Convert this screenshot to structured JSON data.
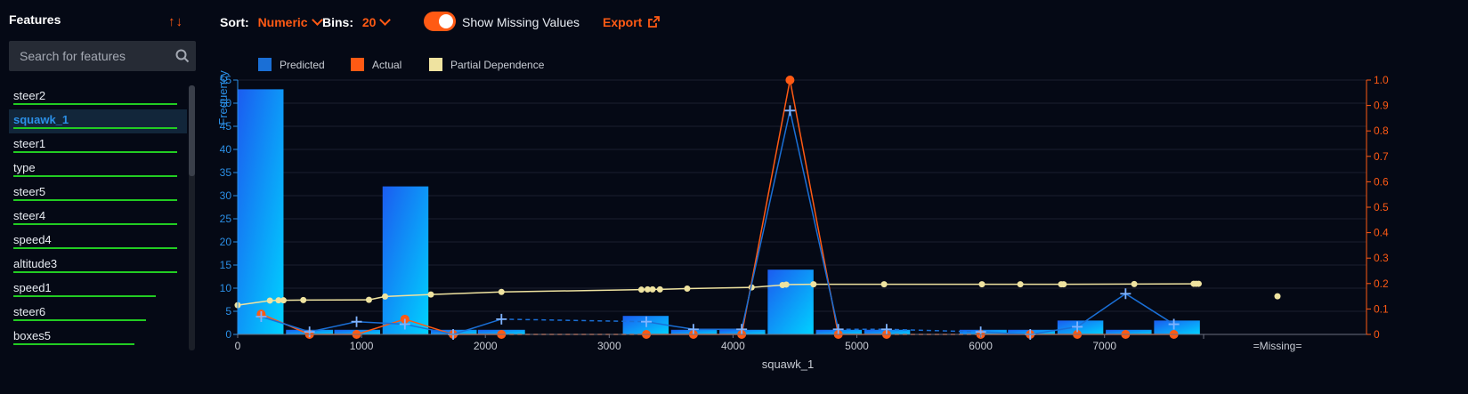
{
  "sidebar": {
    "title": "Features",
    "search": {
      "placeholder": "Search for features",
      "value": ""
    },
    "items": [
      {
        "label": "steer2",
        "importance": 1.0,
        "selected": false
      },
      {
        "label": "squawk_1",
        "importance": 1.0,
        "selected": true
      },
      {
        "label": "steer1",
        "importance": 1.0,
        "selected": false
      },
      {
        "label": "type",
        "importance": 1.0,
        "selected": false
      },
      {
        "label": "steer5",
        "importance": 1.0,
        "selected": false
      },
      {
        "label": "steer4",
        "importance": 1.0,
        "selected": false
      },
      {
        "label": "speed4",
        "importance": 1.0,
        "selected": false
      },
      {
        "label": "altitude3",
        "importance": 1.0,
        "selected": false
      },
      {
        "label": "speed1",
        "importance": 0.87,
        "selected": false
      },
      {
        "label": "steer6",
        "importance": 0.81,
        "selected": false
      },
      {
        "label": "boxes5",
        "importance": 0.74,
        "selected": false
      }
    ]
  },
  "toolbar": {
    "sort_label": "Sort:",
    "sort_value": "Numeric",
    "bins_label": "Bins:",
    "bins_value": "20",
    "missing_label": "Show Missing Values",
    "missing_on": true,
    "export_label": "Export"
  },
  "colors": {
    "predicted": "#1a6fd6",
    "actual": "#ff5a14",
    "partial": "#efe3a0",
    "bar_top": "#1b5cf0",
    "bar_bottom": "#00d2ff"
  },
  "chart_data": {
    "type": "bar",
    "legend": [
      "Predicted",
      "Actual",
      "Partial Dependence"
    ],
    "xlabel": "squawk_1",
    "ylabel": "Frequency",
    "xlim": [
      0,
      7800
    ],
    "x_ticks": [
      0,
      1000,
      2000,
      3000,
      4000,
      5000,
      6000,
      7000
    ],
    "ylim": [
      0,
      55
    ],
    "y_ticks": [
      0,
      5,
      10,
      15,
      20,
      25,
      30,
      35,
      40,
      45,
      50,
      55
    ],
    "y2lim": [
      0,
      1.0
    ],
    "y2_ticks": [
      "0",
      "0.1",
      "0.2",
      "0.3",
      "0.4",
      "0.5",
      "0.6",
      "0.7",
      "0.8",
      "0.9",
      "1.0"
    ],
    "missing_label": "=Missing=",
    "bars": [
      {
        "x0": 0,
        "x1": 370,
        "value": 53
      },
      {
        "x0": 390,
        "x1": 770,
        "value": 1
      },
      {
        "x0": 780,
        "x1": 1150,
        "value": 1
      },
      {
        "x0": 1170,
        "x1": 1540,
        "value": 32
      },
      {
        "x0": 1560,
        "x1": 1930,
        "value": 1
      },
      {
        "x0": 1940,
        "x1": 2320,
        "value": 1
      },
      {
        "x0": 3110,
        "x1": 3480,
        "value": 4
      },
      {
        "x0": 3500,
        "x1": 3870,
        "value": 1
      },
      {
        "x0": 3890,
        "x1": 4260,
        "value": 1
      },
      {
        "x0": 4280,
        "x1": 4650,
        "value": 14
      },
      {
        "x0": 4670,
        "x1": 5040,
        "value": 1
      },
      {
        "x0": 5060,
        "x1": 5430,
        "value": 1
      },
      {
        "x0": 5830,
        "x1": 6210,
        "value": 1
      },
      {
        "x0": 6220,
        "x1": 6600,
        "value": 1
      },
      {
        "x0": 6620,
        "x1": 6990,
        "value": 3
      },
      {
        "x0": 7010,
        "x1": 7380,
        "value": 1
      },
      {
        "x0": 7400,
        "x1": 7770,
        "value": 3
      }
    ],
    "predicted": [
      {
        "x": 190,
        "y": 0.07
      },
      {
        "x": 580,
        "y": 0.01
      },
      {
        "x": 960,
        "y": 0.05
      },
      {
        "x": 1350,
        "y": 0.04
      },
      {
        "x": 1740,
        "y": 0.0
      },
      {
        "x": 2130,
        "y": 0.06,
        "dashed_after": true
      },
      {
        "x": 3300,
        "y": 0.05
      },
      {
        "x": 3680,
        "y": 0.02
      },
      {
        "x": 4070,
        "y": 0.02
      },
      {
        "x": 4460,
        "y": 0.88
      },
      {
        "x": 4850,
        "y": 0.02,
        "dashed_after": true
      },
      {
        "x": 5240,
        "y": 0.02,
        "dashed_after": true
      },
      {
        "x": 6000,
        "y": 0.01
      },
      {
        "x": 6400,
        "y": 0.0
      },
      {
        "x": 6780,
        "y": 0.03
      },
      {
        "x": 7170,
        "y": 0.16
      },
      {
        "x": 7560,
        "y": 0.04
      }
    ],
    "actual": [
      {
        "x": 190,
        "y": 0.08
      },
      {
        "x": 580,
        "y": 0.0
      },
      {
        "x": 960,
        "y": 0.0
      },
      {
        "x": 1350,
        "y": 0.06
      },
      {
        "x": 1740,
        "y": 0.0
      },
      {
        "x": 2130,
        "y": 0.0,
        "dashed_after": true
      },
      {
        "x": 3300,
        "y": 0.0
      },
      {
        "x": 3680,
        "y": 0.0
      },
      {
        "x": 4070,
        "y": 0.0
      },
      {
        "x": 4460,
        "y": 1.0
      },
      {
        "x": 4850,
        "y": 0.0
      },
      {
        "x": 5240,
        "y": 0.0,
        "dashed_after": true
      },
      {
        "x": 6000,
        "y": 0.0
      },
      {
        "x": 6400,
        "y": 0.0
      },
      {
        "x": 6780,
        "y": 0.0
      },
      {
        "x": 7170,
        "y": 0.0
      },
      {
        "x": 7560,
        "y": 0.0
      }
    ],
    "partial_dependence": [
      {
        "x": 0,
        "y": 0.115
      },
      {
        "x": 260,
        "y": 0.133
      },
      {
        "x": 330,
        "y": 0.134
      },
      {
        "x": 370,
        "y": 0.134
      },
      {
        "x": 530,
        "y": 0.135
      },
      {
        "x": 1060,
        "y": 0.136
      },
      {
        "x": 1190,
        "y": 0.149
      },
      {
        "x": 1560,
        "y": 0.157
      },
      {
        "x": 2130,
        "y": 0.167
      },
      {
        "x": 3260,
        "y": 0.176
      },
      {
        "x": 3310,
        "y": 0.177
      },
      {
        "x": 3350,
        "y": 0.177
      },
      {
        "x": 3410,
        "y": 0.177
      },
      {
        "x": 3630,
        "y": 0.18
      },
      {
        "x": 4150,
        "y": 0.185
      },
      {
        "x": 4400,
        "y": 0.194
      },
      {
        "x": 4430,
        "y": 0.196
      },
      {
        "x": 4650,
        "y": 0.197
      },
      {
        "x": 5220,
        "y": 0.197
      },
      {
        "x": 6010,
        "y": 0.197
      },
      {
        "x": 6320,
        "y": 0.197
      },
      {
        "x": 6650,
        "y": 0.197
      },
      {
        "x": 6670,
        "y": 0.197
      },
      {
        "x": 7240,
        "y": 0.198
      },
      {
        "x": 7720,
        "y": 0.199
      },
      {
        "x": 7740,
        "y": 0.199
      },
      {
        "x": 7760,
        "y": 0.199
      }
    ],
    "missing_partial_dependence": 0.15
  }
}
